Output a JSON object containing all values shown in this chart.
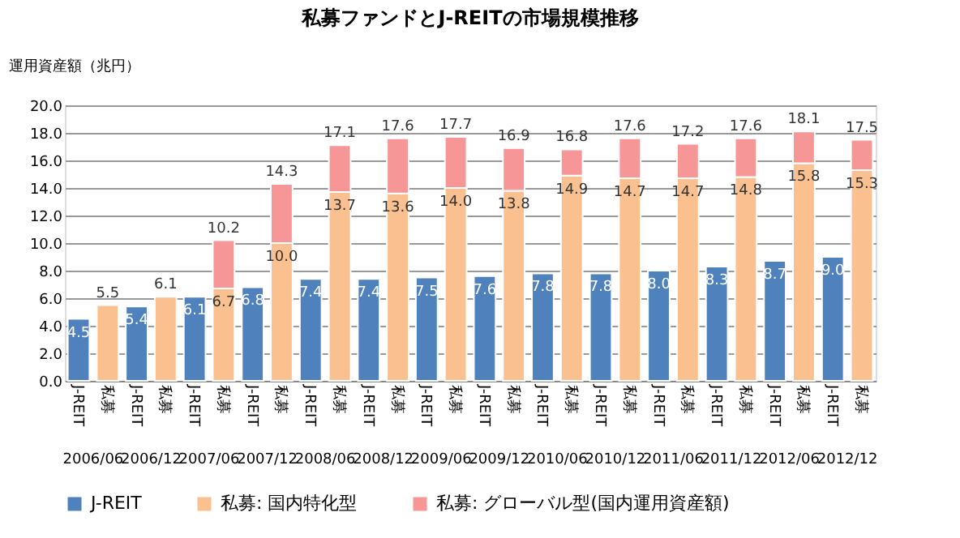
{
  "chart_data": {
    "type": "bar",
    "title": "私募ファンドとJ-REITの市場規模推移",
    "ylabel": "運用資産額（兆円）",
    "categories": [
      "J-REIT",
      "私募",
      "J-REIT",
      "私募",
      "J-REIT",
      "私募",
      "J-REIT",
      "私募",
      "J-REIT",
      "私募",
      "J-REIT",
      "私募",
      "J-REIT",
      "私募",
      "J-REIT",
      "私募",
      "J-REIT",
      "私募",
      "J-REIT",
      "私募",
      "J-REIT",
      "私募",
      "J-REIT",
      "私募",
      "J-REIT",
      "私募",
      "J-REIT",
      "私募"
    ],
    "annotations": [
      "2006/06",
      "2006/12",
      "2007/06",
      "2007/12",
      "2008/06",
      "2008/12",
      "2009/06",
      "2009/12",
      "2010/06",
      "2010/12",
      "2011/06",
      "2011/12",
      "2012/06",
      "2012/12"
    ],
    "stacked": true,
    "series": [
      {
        "name": "J-REIT",
        "color": "#4f81bd",
        "values": [
          4.5,
          null,
          5.4,
          null,
          6.1,
          null,
          6.8,
          null,
          7.4,
          null,
          7.4,
          null,
          7.5,
          null,
          7.6,
          null,
          7.8,
          null,
          7.8,
          null,
          8.0,
          null,
          8.3,
          null,
          8.7,
          null,
          9.0,
          null
        ],
        "value_labels": [
          "4.5",
          null,
          "5.4",
          null,
          "6.1",
          null,
          "6.8",
          null,
          "7.4",
          null,
          "7.4",
          null,
          "7.5",
          null,
          "7.6",
          null,
          "7.8",
          null,
          "7.8",
          null,
          "8.0",
          null,
          "8.3",
          null,
          "8.7",
          null,
          "9.0",
          null
        ]
      },
      {
        "name": "私募: 国内特化型",
        "color": "#fac090",
        "values": [
          null,
          5.5,
          null,
          6.1,
          null,
          6.7,
          null,
          10.0,
          null,
          13.7,
          null,
          13.6,
          null,
          14.0,
          null,
          13.8,
          null,
          14.9,
          null,
          14.7,
          null,
          14.7,
          null,
          14.8,
          null,
          15.8,
          null,
          15.3
        ],
        "value_labels": [
          null,
          null,
          null,
          null,
          null,
          "6.7",
          null,
          "10.0",
          null,
          "13.7",
          null,
          "13.6",
          null,
          "14.0",
          null,
          "13.8",
          null,
          "14.9",
          null,
          "14.7",
          null,
          "14.7",
          null,
          "14.8",
          null,
          "15.8",
          null,
          "15.3"
        ]
      },
      {
        "name": "私募: グローバル型(国内運用資産額)",
        "color": "#f79696",
        "values": [
          null,
          null,
          null,
          null,
          null,
          3.5,
          null,
          4.3,
          null,
          3.4,
          null,
          4.0,
          null,
          3.7,
          null,
          3.1,
          null,
          1.9,
          null,
          2.9,
          null,
          2.5,
          null,
          2.8,
          null,
          2.3,
          null,
          2.2
        ]
      }
    ],
    "totals": [
      null,
      "5.5",
      null,
      "6.1",
      null,
      "10.2",
      null,
      "14.3",
      null,
      "17.1",
      null,
      "17.6",
      null,
      "17.7",
      null,
      "16.9",
      null,
      "16.8",
      null,
      "17.6",
      null,
      "17.2",
      null,
      "17.6",
      null,
      "18.1",
      null,
      "17.5"
    ],
    "ylim": [
      0,
      20
    ],
    "yticks": [
      {
        "value": 0,
        "label": "0.0"
      },
      {
        "value": 2,
        "label": "2.0"
      },
      {
        "value": 4,
        "label": "4.0"
      },
      {
        "value": 6,
        "label": "6.0"
      },
      {
        "value": 8,
        "label": "8.0"
      },
      {
        "value": 10,
        "label": "10.0"
      },
      {
        "value": 12,
        "label": "12.0"
      },
      {
        "value": 14,
        "label": "14.0"
      },
      {
        "value": 16,
        "label": "16.0"
      },
      {
        "value": 18,
        "label": "18.0"
      },
      {
        "value": 20,
        "label": "20.0"
      }
    ],
    "grid": "y",
    "legend": "bottom"
  }
}
